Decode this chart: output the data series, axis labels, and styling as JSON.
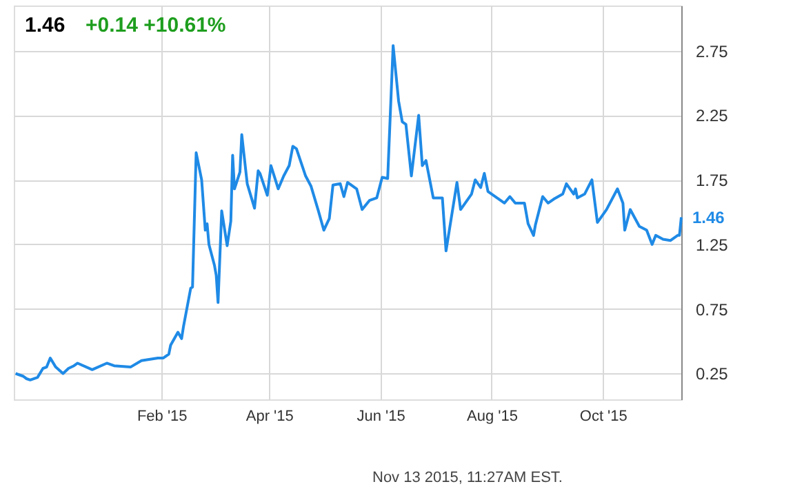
{
  "chart_data": {
    "type": "line",
    "title": "1.46",
    "annotations": [
      "+0.14 +10.61%",
      "Nov 13 2015, 11:27AM EST.",
      {
        "text": "1.46",
        "x": "2015-11-13",
        "y": 1.46
      }
    ],
    "x": [
      "2014-11-13",
      "2014-11-17",
      "2014-11-19",
      "2014-11-21",
      "2014-11-25",
      "2014-11-28",
      "2014-11-30",
      "2014-12-02",
      "2014-12-05",
      "2014-12-09",
      "2014-12-12",
      "2014-12-15",
      "2014-12-17",
      "2014-12-25",
      "2015-01-02",
      "2015-01-06",
      "2015-01-15",
      "2015-01-21",
      "2015-01-30",
      "2015-02-02",
      "2015-02-05",
      "2015-02-06",
      "2015-02-10",
      "2015-02-12",
      "2015-02-13",
      "2015-02-17",
      "2015-02-18",
      "2015-02-20",
      "2015-02-23",
      "2015-02-25",
      "2015-02-26",
      "2015-02-27",
      "2015-03-02",
      "2015-03-03",
      "2015-03-04",
      "2015-03-06",
      "2015-03-09",
      "2015-03-11",
      "2015-03-12",
      "2015-03-13",
      "2015-03-16",
      "2015-03-17",
      "2015-03-20",
      "2015-03-24",
      "2015-03-26",
      "2015-03-27",
      "2015-03-31",
      "2015-04-02",
      "2015-04-04",
      "2015-04-06",
      "2015-04-09",
      "2015-04-12",
      "2015-04-14",
      "2015-04-16",
      "2015-04-21",
      "2015-04-24",
      "2015-04-28",
      "2015-05-01",
      "2015-05-04",
      "2015-05-06",
      "2015-05-10",
      "2015-05-12",
      "2015-05-14",
      "2015-05-19",
      "2015-05-22",
      "2015-05-26",
      "2015-05-30",
      "2015-06-02",
      "2015-06-05",
      "2015-06-08",
      "2015-06-11",
      "2015-06-13",
      "2015-06-15",
      "2015-06-18",
      "2015-06-22",
      "2015-06-24",
      "2015-06-26",
      "2015-06-30",
      "2015-07-05",
      "2015-07-07",
      "2015-07-13",
      "2015-07-15",
      "2015-07-21",
      "2015-07-23",
      "2015-07-26",
      "2015-07-28",
      "2015-07-30",
      "2015-08-08",
      "2015-08-11",
      "2015-08-14",
      "2015-08-19",
      "2015-08-21",
      "2015-08-24",
      "2015-08-25",
      "2015-08-29",
      "2015-09-01",
      "2015-09-04",
      "2015-09-09",
      "2015-09-11",
      "2015-09-15",
      "2015-09-16",
      "2015-09-17",
      "2015-09-21",
      "2015-09-25",
      "2015-09-28",
      "2015-10-03",
      "2015-10-09",
      "2015-10-12",
      "2015-10-13",
      "2015-10-16",
      "2015-10-21",
      "2015-10-25",
      "2015-10-28",
      "2015-10-30",
      "2015-11-03",
      "2015-11-07",
      "2015-11-11",
      "2015-11-12",
      "2015-11-13"
    ],
    "series": [
      {
        "color": "#1f8ae6",
        "values": [
          0.25,
          0.23,
          0.21,
          0.2,
          0.22,
          0.29,
          0.3,
          0.37,
          0.3,
          0.25,
          0.29,
          0.31,
          0.33,
          0.28,
          0.33,
          0.31,
          0.3,
          0.35,
          0.37,
          0.37,
          0.4,
          0.47,
          0.57,
          0.52,
          0.61,
          0.91,
          0.92,
          1.96,
          1.75,
          1.36,
          1.41,
          1.25,
          1.09,
          1.01,
          0.8,
          1.51,
          1.24,
          1.43,
          1.94,
          1.68,
          1.81,
          2.1,
          1.72,
          1.53,
          1.82,
          1.8,
          1.63,
          1.86,
          1.77,
          1.68,
          1.78,
          1.86,
          2.01,
          1.99,
          1.78,
          1.7,
          1.51,
          1.36,
          1.45,
          1.71,
          1.72,
          1.62,
          1.73,
          1.68,
          1.52,
          1.59,
          1.61,
          1.77,
          1.76,
          2.79,
          2.36,
          2.2,
          2.18,
          1.78,
          2.25,
          1.86,
          1.9,
          1.61,
          1.61,
          1.2,
          1.73,
          1.52,
          1.64,
          1.75,
          1.69,
          1.8,
          1.66,
          1.57,
          1.62,
          1.57,
          1.57,
          1.41,
          1.32,
          1.4,
          1.62,
          1.57,
          1.6,
          1.64,
          1.72,
          1.64,
          1.68,
          1.61,
          1.64,
          1.75,
          1.42,
          1.52,
          1.68,
          1.57,
          1.36,
          1.52,
          1.39,
          1.36,
          1.25,
          1.32,
          1.29,
          1.28,
          1.32,
          1.32,
          1.46
        ]
      }
    ],
    "xlim": [
      "2014-11-12",
      "2015-11-13"
    ],
    "xticks": [
      {
        "value": "2015-02-01",
        "label": "Feb '15"
      },
      {
        "value": "2015-04-01",
        "label": "Apr '15"
      },
      {
        "value": "2015-06-01",
        "label": "Jun '15"
      },
      {
        "value": "2015-08-01",
        "label": "Aug '15"
      },
      {
        "value": "2015-10-01",
        "label": "Oct '15"
      }
    ],
    "ylim": [
      0.05,
      3.1
    ],
    "yticks": [
      0.25,
      0.75,
      1.25,
      1.75,
      2.25,
      2.75
    ],
    "grid": true,
    "marker": "none",
    "line_style": "solid"
  }
}
